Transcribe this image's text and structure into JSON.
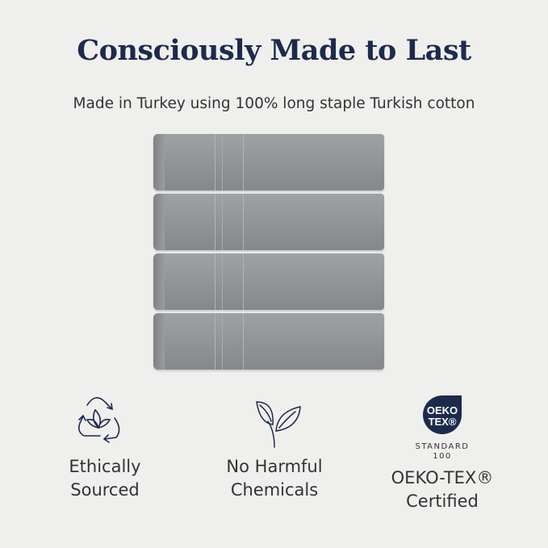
{
  "header": {
    "title": "Consciously Made to Last",
    "subtitle": "Made in Turkey using 100% long staple Turkish cotton"
  },
  "product": {
    "towel_count": 4,
    "towel_color": "#94979a"
  },
  "features": [
    {
      "icon": "recycle-leaf-icon",
      "label_line1": "Ethically",
      "label_line2": "Sourced"
    },
    {
      "icon": "leaf-icon",
      "label_line1": "No Harmful",
      "label_line2": "Chemicals"
    },
    {
      "icon": "oeko-tex-logo",
      "logo_text1": "OEKO",
      "logo_text2": "TEX®",
      "standard_line1": "STANDARD",
      "standard_line2": "100",
      "label_line1": "OEKO-TEX®",
      "label_line2": "Certified"
    }
  ],
  "colors": {
    "navy": "#1e2a4d",
    "background": "#efefed"
  }
}
